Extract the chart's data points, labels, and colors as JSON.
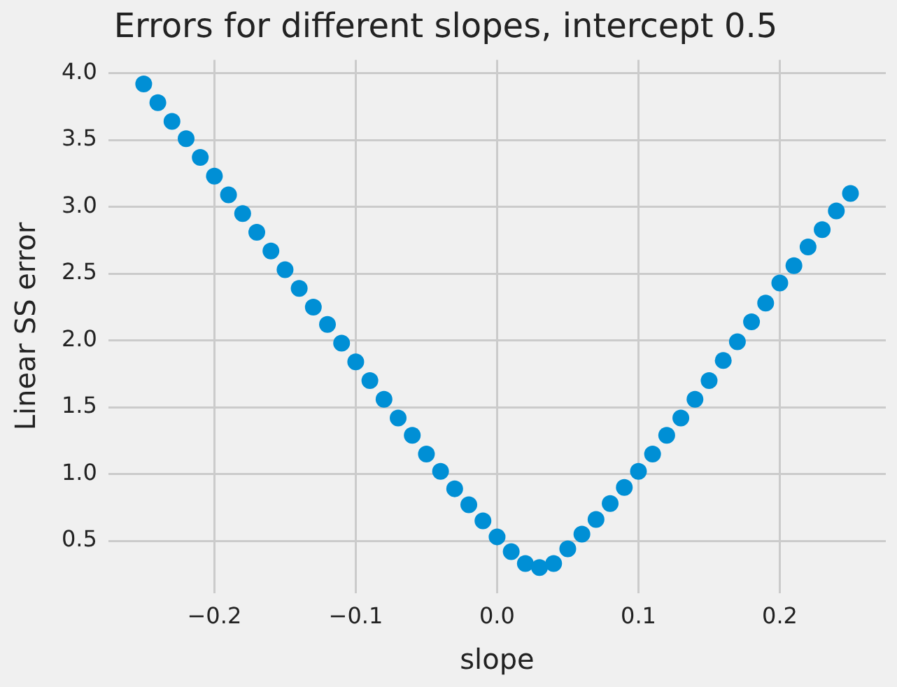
{
  "chart_data": {
    "type": "scatter",
    "title": "Errors for different slopes, intercept 0.5",
    "xlabel": "slope",
    "ylabel": "Linear SS error",
    "x": [
      -0.25,
      -0.24,
      -0.23,
      -0.22,
      -0.21,
      -0.2,
      -0.19,
      -0.18,
      -0.17,
      -0.16,
      -0.15,
      -0.14,
      -0.13,
      -0.12,
      -0.11,
      -0.1,
      -0.09,
      -0.08,
      -0.07,
      -0.06,
      -0.05,
      -0.04,
      -0.03,
      -0.02,
      -0.01,
      0,
      0.01,
      0.02,
      0.03,
      0.04,
      0.05,
      0.06,
      0.07,
      0.08,
      0.09,
      0.1,
      0.11,
      0.12,
      0.13,
      0.14,
      0.15,
      0.16,
      0.17,
      0.18,
      0.19,
      0.2,
      0.21,
      0.22,
      0.23,
      0.24,
      0.25
    ],
    "series": [
      {
        "color": "#008fd5",
        "values": [
          3.92,
          3.78,
          3.64,
          3.51,
          3.37,
          3.23,
          3.09,
          2.95,
          2.81,
          2.67,
          2.53,
          2.39,
          2.25,
          2.12,
          1.98,
          1.84,
          1.7,
          1.56,
          1.42,
          1.29,
          1.15,
          1.02,
          0.89,
          0.77,
          0.65,
          0.53,
          0.42,
          0.33,
          0.3,
          0.33,
          0.44,
          0.55,
          0.66,
          0.78,
          0.9,
          1.02,
          1.15,
          1.29,
          1.42,
          1.56,
          1.7,
          1.85,
          1.99,
          2.14,
          2.28,
          2.43,
          2.56,
          2.7,
          2.83,
          2.97,
          3.1
        ]
      }
    ],
    "xlim": [
      -0.275,
      0.275
    ],
    "ylim": [
      0.11,
      4.1
    ],
    "xticks": [
      {
        "value": -0.2,
        "label": "−0.2"
      },
      {
        "value": -0.1,
        "label": "−0.1"
      },
      {
        "value": 0,
        "label": "0.0"
      },
      {
        "value": 0.1,
        "label": "0.1"
      },
      {
        "value": 0.2,
        "label": "0.2"
      }
    ],
    "yticks": [
      {
        "value": 0.5,
        "label": "0.5"
      },
      {
        "value": 1,
        "label": "1.0"
      },
      {
        "value": 1.5,
        "label": "1.5"
      },
      {
        "value": 2,
        "label": "2.0"
      },
      {
        "value": 2.5,
        "label": "2.5"
      },
      {
        "value": 3,
        "label": "3.0"
      },
      {
        "value": 3.5,
        "label": "3.5"
      },
      {
        "value": 4,
        "label": "4.0"
      }
    ],
    "grid": true,
    "marker": "circle"
  }
}
